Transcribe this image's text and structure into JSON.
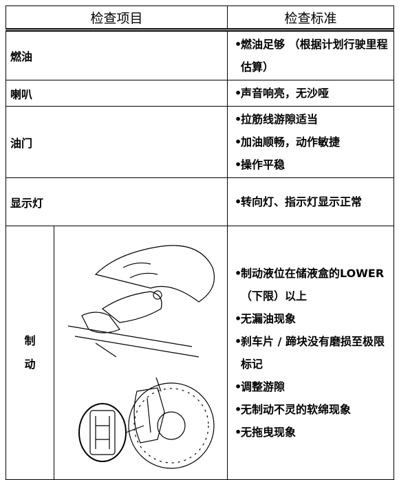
{
  "table": {
    "headers": [
      "检查项目",
      "检查标准"
    ],
    "rows": [
      {
        "item": "燃油",
        "criteria": [
          "燃油足够 （根据计划行驶里程估算）"
        ]
      },
      {
        "item": "喇叭",
        "criteria": [
          "声音响亮，无沙哑"
        ]
      },
      {
        "item": "油门",
        "criteria": [
          "拉筋线游隙适当",
          "加油顺畅，动作敏捷",
          "操作平稳"
        ]
      },
      {
        "item": "显示灯",
        "criteria": [
          "转向灯、指示灯显示正常"
        ]
      },
      {
        "item": "制动",
        "criteria": [
          "制动液位在储液盒的LOWER （下限）以上",
          "无漏油现象",
          "刹车片 / 蹄块没有磨损至极限标记",
          "调整游隙",
          "无制动不灵的软绵现象",
          "无拖曳现象"
        ]
      }
    ]
  }
}
